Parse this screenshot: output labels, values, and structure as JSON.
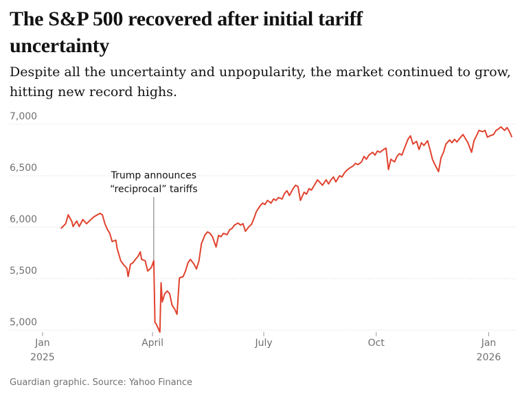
{
  "chart_data": {
    "type": "line",
    "title": "The S&P 500 recovered after initial tariff uncertainty",
    "subtitle": "Despite all the uncertainty and unpopularity, the market continued to grow, hitting new record highs.",
    "source": "Guardian graphic. Source: Yahoo Finance",
    "color": "#e0412d",
    "grid": true,
    "annotation": {
      "text": [
        "Trump announces",
        "“reciprocal” tariffs"
      ],
      "x": 91
    },
    "xlim": [
      -5,
      390
    ],
    "xticks": [
      {
        "value": 0,
        "label": "Jan",
        "sublabel": "2025"
      },
      {
        "value": 90,
        "label": "April"
      },
      {
        "value": 181,
        "label": "July"
      },
      {
        "value": 273,
        "label": "Oct"
      },
      {
        "value": 365,
        "label": "Jan",
        "sublabel": "2026"
      }
    ],
    "ylim": [
      4940,
      7100
    ],
    "yticks": [
      {
        "value": 5000,
        "label": "5,000"
      },
      {
        "value": 5500,
        "label": "5,500"
      },
      {
        "value": 6000,
        "label": "6,000"
      },
      {
        "value": 6500,
        "label": "6,500"
      },
      {
        "value": 7000,
        "label": "7,000"
      }
    ],
    "x": [
      15,
      19,
      21,
      24,
      25,
      28,
      30,
      33,
      36,
      39,
      42,
      44,
      47,
      49,
      51,
      53,
      55,
      57,
      60,
      61,
      64,
      66,
      69,
      70,
      72,
      74,
      76,
      78,
      80,
      81,
      84,
      86,
      89,
      91,
      92,
      93,
      96,
      97,
      98,
      100,
      102,
      104,
      106,
      108,
      110,
      112,
      115,
      117,
      119,
      121,
      124,
      126,
      128,
      130,
      133,
      135,
      137,
      139,
      142,
      144,
      146,
      148,
      151,
      153,
      155,
      157,
      160,
      162,
      164,
      166,
      169,
      171,
      173,
      175,
      178,
      180,
      182,
      184,
      187,
      189,
      191,
      193,
      196,
      198,
      200,
      202,
      205,
      207,
      209,
      211,
      214,
      216,
      218,
      220,
      223,
      225,
      227,
      229,
      232,
      234,
      236,
      238,
      240,
      243,
      245,
      247,
      249,
      252,
      254,
      256,
      258,
      261,
      263,
      265,
      267,
      270,
      272,
      274,
      276,
      279,
      281,
      283,
      285,
      288,
      290,
      292,
      294,
      297,
      299,
      301,
      303,
      306,
      308,
      310,
      312,
      315,
      317,
      319,
      321,
      324,
      326,
      328,
      330,
      333,
      335,
      337,
      339,
      342,
      344,
      346,
      348,
      351,
      353,
      355,
      357,
      360,
      362,
      364,
      366,
      369,
      371,
      373,
      375,
      378,
      380,
      382,
      384
    ],
    "values": [
      5987,
      6034,
      6120,
      6054,
      6007,
      6060,
      6007,
      6074,
      6034,
      6067,
      6100,
      6114,
      6134,
      6120,
      6034,
      5980,
      5940,
      5860,
      5874,
      5794,
      5674,
      5640,
      5600,
      5520,
      5640,
      5654,
      5687,
      5714,
      5760,
      5687,
      5674,
      5574,
      5607,
      5674,
      5074,
      5060,
      4980,
      5460,
      5274,
      5354,
      5380,
      5354,
      5240,
      5207,
      5154,
      5507,
      5520,
      5574,
      5654,
      5687,
      5640,
      5594,
      5674,
      5840,
      5927,
      5954,
      5940,
      5907,
      5807,
      5920,
      5907,
      5940,
      5927,
      5974,
      5987,
      6020,
      6040,
      6020,
      6034,
      5960,
      6007,
      6027,
      6087,
      6154,
      6207,
      6234,
      6220,
      6260,
      6234,
      6274,
      6260,
      6287,
      6274,
      6327,
      6354,
      6307,
      6374,
      6407,
      6394,
      6260,
      6340,
      6320,
      6374,
      6360,
      6420,
      6460,
      6434,
      6407,
      6460,
      6420,
      6460,
      6487,
      6440,
      6500,
      6487,
      6527,
      6554,
      6580,
      6594,
      6620,
      6607,
      6634,
      6687,
      6660,
      6700,
      6727,
      6700,
      6740,
      6727,
      6754,
      6767,
      6560,
      6660,
      6634,
      6687,
      6714,
      6700,
      6794,
      6854,
      6887,
      6807,
      6834,
      6754,
      6820,
      6794,
      6840,
      6754,
      6660,
      6607,
      6540,
      6674,
      6727,
      6807,
      6847,
      6820,
      6854,
      6827,
      6874,
      6900,
      6860,
      6820,
      6727,
      6840,
      6887,
      6940,
      6927,
      6940,
      6874,
      6887,
      6900,
      6940,
      6954,
      6974,
      6940,
      6967,
      6927,
      6874
    ]
  }
}
